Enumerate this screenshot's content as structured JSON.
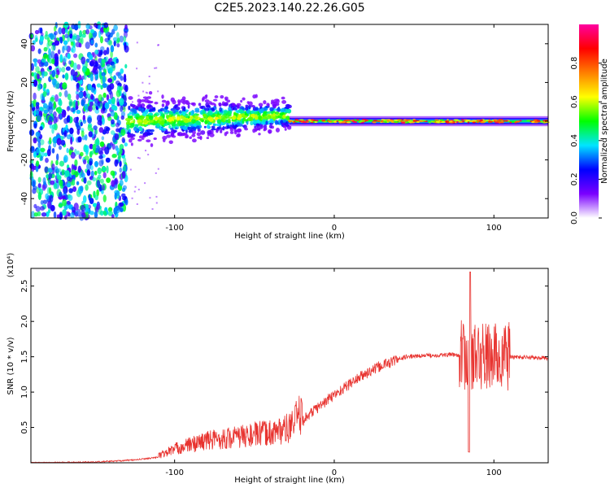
{
  "chart_data": [
    {
      "type": "heatmap",
      "title": "C2E5.2023.140.22.26.G05",
      "xlabel": "Height of straight line (km)",
      "ylabel": "Frequency (Hz)",
      "xlim": [
        -190,
        134
      ],
      "ylim": [
        -50,
        50
      ],
      "xticks": [
        -100,
        0,
        100
      ],
      "yticks": [
        -40,
        -20,
        0,
        20,
        40
      ],
      "colorbar": {
        "label": "Normalized spectral amplitude",
        "range": [
          0,
          1
        ],
        "ticks": [
          "0.0",
          "0.2",
          "0.4",
          "0.6",
          "0.8"
        ],
        "colormap": [
          "#ffffff",
          "#7a00ff",
          "#0000ff",
          "#00e5ff",
          "#00ff00",
          "#ffff00",
          "#ff7f00",
          "#ff0000",
          "#ff00a0"
        ]
      },
      "segments": [
        {
          "x": [
            -190,
            -130
          ],
          "pattern": "broadband noise",
          "freq_range": [
            -50,
            50
          ]
        },
        {
          "x": [
            -130,
            -28
          ],
          "pattern": "scattered signal",
          "center_freq": 0,
          "center_freq_end": 3,
          "halfwidth": 5
        },
        {
          "x": [
            -28,
            134
          ],
          "pattern": "tight line",
          "center_freq": 0,
          "halfwidth": 2
        }
      ]
    },
    {
      "type": "line",
      "title": "",
      "xlabel": "Height of straight line (km)",
      "ylabel": "SNR (10 * v/v)",
      "y_multiplier": "(x10⁴)",
      "xlim": [
        -190,
        134
      ],
      "ylim": [
        0,
        2.75
      ],
      "xticks": [
        -100,
        0,
        100
      ],
      "yticks": [
        0.5,
        1.0,
        1.5,
        2.0,
        2.5
      ],
      "color": "#e8332f",
      "envelope": {
        "x": [
          -190,
          -150,
          -125,
          -110,
          -100,
          -80,
          -60,
          -40,
          -28,
          -15,
          0,
          15,
          30,
          45,
          60,
          75,
          85,
          95,
          108,
          134
        ],
        "y": [
          0.0,
          0.01,
          0.04,
          0.08,
          0.16,
          0.26,
          0.3,
          0.35,
          0.4,
          0.7,
          0.96,
          1.2,
          1.38,
          1.5,
          1.52,
          1.53,
          1.5,
          1.5,
          1.5,
          1.48
        ]
      }
    }
  ]
}
